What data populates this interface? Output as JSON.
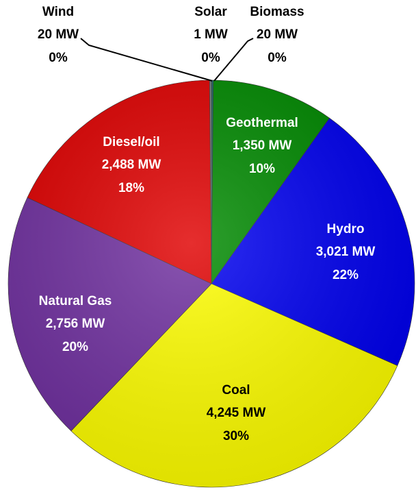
{
  "chart_data": {
    "type": "pie",
    "categories": [
      "Solar",
      "Biomass",
      "Geothermal",
      "Hydro",
      "Coal",
      "Natural Gas",
      "Diesel/oil",
      "Wind"
    ],
    "values": [
      1,
      20,
      1350,
      3021,
      4245,
      2756,
      2488,
      20
    ],
    "value_labels": [
      "1  MW",
      "20  MW",
      "1,350  MW",
      "3,021  MW",
      "4,245  MW",
      "2,756  MW",
      "2,488  MW",
      "20  MW"
    ],
    "percent_labels": [
      "0%",
      "0%",
      "10%",
      "22%",
      "30%",
      "20%",
      "18%",
      "0%"
    ],
    "colors": [
      "#7fd3f0",
      "#1e6f6f",
      "#008a00",
      "#0000f0",
      "#ffff00",
      "#7030a0",
      "#e00000",
      "#808080"
    ]
  }
}
